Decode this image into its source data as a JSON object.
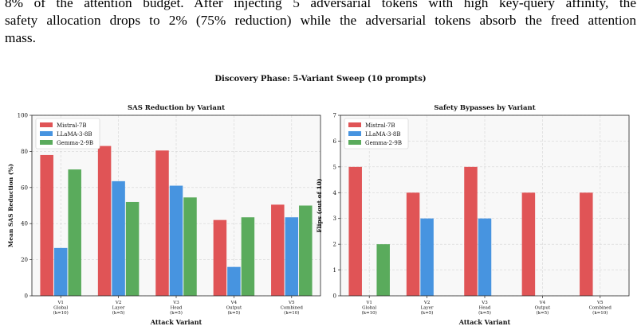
{
  "paragraph": {
    "lines": [
      "8% of the attention budget. After injecting 5 adversarial tokens with high key-query affinity, the",
      "safety allocation drops to 2% (75% reduction) while the adversarial tokens absorb the freed attention",
      "mass."
    ]
  },
  "figure": {
    "title": "Discovery Phase: 5-Variant Sweep (10 prompts)"
  },
  "chart_data": [
    {
      "type": "bar",
      "title": "SAS Reduction by Variant",
      "xlabel": "Attack Variant",
      "ylabel": "Mean SAS Reduction (%)",
      "categories": [
        "V1\nGlobal\n(k=10)",
        "V2\nLayer\n(k=5)",
        "V3\nHead\n(k=5)",
        "V4\nOutput\n(k=5)",
        "V5\nCombined\n(k=10)"
      ],
      "series": [
        {
          "name": "Mistral-7B",
          "color": "#e05456",
          "values": [
            78,
            83,
            80.5,
            42,
            50.5
          ]
        },
        {
          "name": "LLaMA-3-8B",
          "color": "#4794e0",
          "values": [
            26.5,
            63.5,
            61,
            16,
            43.5
          ]
        },
        {
          "name": "Gemma-2-9B",
          "color": "#5aab5c",
          "values": [
            70,
            52,
            54.5,
            43.5,
            50
          ]
        }
      ],
      "ylim": [
        0,
        100
      ],
      "yticks": [
        0,
        20,
        40,
        60,
        80,
        100
      ],
      "grid": true,
      "legend": "upper-left"
    },
    {
      "type": "bar",
      "title": "Safety Bypasses by Variant",
      "xlabel": "Attack Variant",
      "ylabel": "Flips (out of 10)",
      "categories": [
        "V1\nGlobal\n(k=10)",
        "V2\nLayer\n(k=5)",
        "V3\nHead\n(k=5)",
        "V4\nOutput\n(k=5)",
        "V5\nCombined\n(k=10)"
      ],
      "series": [
        {
          "name": "Mistral-7B",
          "color": "#e05456",
          "values": [
            5,
            4,
            5,
            4,
            4
          ]
        },
        {
          "name": "LLaMA-3-8B",
          "color": "#4794e0",
          "values": [
            0,
            3,
            3,
            0,
            0
          ]
        },
        {
          "name": "Gemma-2-9B",
          "color": "#5aab5c",
          "values": [
            2,
            0,
            0,
            0,
            0
          ]
        }
      ],
      "ylim": [
        0,
        7
      ],
      "yticks": [
        0,
        1,
        2,
        3,
        4,
        5,
        6,
        7
      ],
      "grid": true,
      "legend": "upper-left"
    }
  ]
}
